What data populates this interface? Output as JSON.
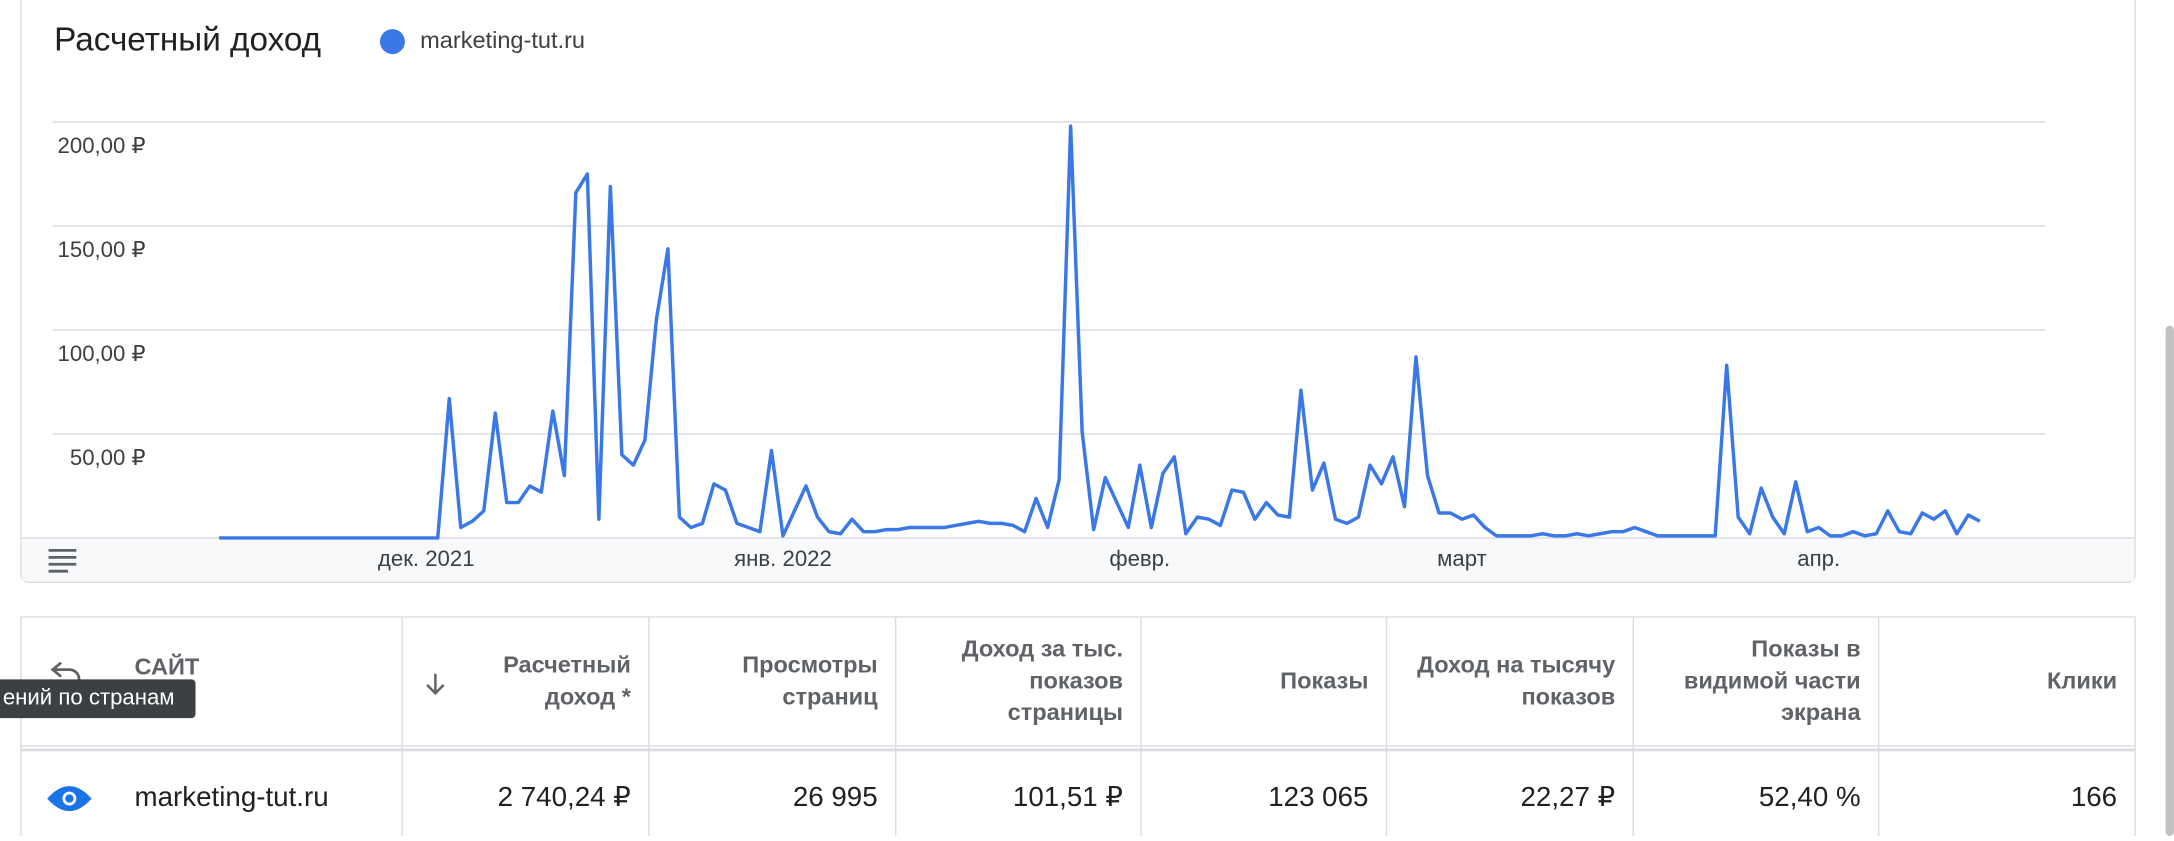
{
  "chart_data": {
    "type": "line",
    "title": "Расчетный доход",
    "categories": [
      null,
      null,
      null,
      null,
      null,
      null,
      null,
      null,
      null,
      null,
      null,
      null,
      null,
      null,
      null,
      null,
      null,
      null,
      "дек. 2021",
      null,
      null,
      null,
      null,
      null,
      null,
      null,
      null,
      null,
      null,
      null,
      null,
      null,
      null,
      null,
      null,
      null,
      null,
      null,
      null,
      null,
      null,
      null,
      null,
      null,
      null,
      null,
      null,
      null,
      null,
      "янв. 2022",
      null,
      null,
      null,
      null,
      null,
      null,
      null,
      null,
      null,
      null,
      null,
      null,
      null,
      null,
      null,
      null,
      null,
      null,
      null,
      null,
      null,
      null,
      null,
      null,
      null,
      null,
      null,
      null,
      null,
      null,
      "февр.",
      null,
      null,
      null,
      null,
      null,
      null,
      null,
      null,
      null,
      null,
      null,
      null,
      null,
      null,
      null,
      null,
      null,
      null,
      null,
      null,
      null,
      null,
      null,
      null,
      null,
      null,
      null,
      "март",
      null,
      null,
      null,
      null,
      null,
      null,
      null,
      null,
      null,
      null,
      null,
      null,
      null,
      null,
      null,
      null,
      null,
      null,
      null,
      null,
      null,
      null,
      null,
      null,
      null,
      null,
      null,
      null,
      null,
      null,
      "апр.",
      null,
      null,
      null,
      null,
      null,
      null,
      null,
      null,
      null,
      null,
      null,
      null,
      null,
      null
    ],
    "series": [
      {
        "name": "marketing-tut.ru",
        "color": "#3b78e7",
        "values": [
          0,
          0,
          0,
          0,
          0,
          0,
          0,
          0,
          0,
          0,
          0,
          0,
          0,
          0,
          0,
          0,
          0,
          0,
          0,
          0,
          67,
          5,
          8,
          13,
          60,
          17,
          17,
          25,
          22,
          61,
          30,
          166,
          175,
          9,
          169,
          40,
          35,
          47,
          105,
          139,
          10,
          5,
          7,
          26,
          23,
          7,
          5,
          3,
          42,
          1,
          13,
          25,
          10,
          3,
          2,
          9,
          3,
          3,
          4,
          4,
          5,
          5,
          5,
          5,
          6,
          7,
          8,
          7,
          7,
          6,
          3,
          19,
          5,
          28,
          198,
          51,
          4,
          29,
          17,
          5,
          35,
          5,
          31,
          39,
          2,
          10,
          9,
          6,
          23,
          22,
          9,
          17,
          11,
          10,
          71,
          23,
          36,
          9,
          7,
          10,
          35,
          26,
          39,
          15,
          87,
          30,
          12,
          12,
          9,
          11,
          5,
          1,
          1,
          1,
          1,
          2,
          1,
          1,
          2,
          1,
          2,
          3,
          3,
          5,
          3,
          1,
          1,
          1,
          1,
          1,
          1,
          83,
          10,
          2,
          24,
          10,
          2,
          27,
          3,
          5,
          1,
          1,
          3,
          1,
          2,
          13,
          3,
          2,
          12,
          9,
          13,
          2,
          11,
          8
        ]
      }
    ],
    "ylim": [
      0,
      200
    ],
    "yticks": [
      {
        "value": 50,
        "label": "50,00 ₽"
      },
      {
        "value": 100,
        "label": "100,00 ₽"
      },
      {
        "value": 150,
        "label": "150,00 ₽"
      },
      {
        "value": 200,
        "label": "200,00 ₽"
      }
    ],
    "grid": true
  },
  "table": {
    "headers": [
      [
        "САЙТ"
      ],
      [
        "Расчетный",
        "доход *"
      ],
      [
        "Просмотры",
        "страниц"
      ],
      [
        "Доход за тыс.",
        "показов",
        "страницы"
      ],
      [
        "Показы"
      ],
      [
        "Доход на тысячу",
        "показов"
      ],
      [
        "Показы в",
        "видимой части",
        "экрана"
      ],
      [
        "Клики"
      ]
    ],
    "rows": [
      [
        "marketing-tut.ru",
        "2 740,24 ₽",
        "26 995",
        "101,51 ₽",
        "123 065",
        "22,27 ₽",
        "52,40 %",
        "166"
      ]
    ]
  },
  "tooltip": "ений по странам"
}
